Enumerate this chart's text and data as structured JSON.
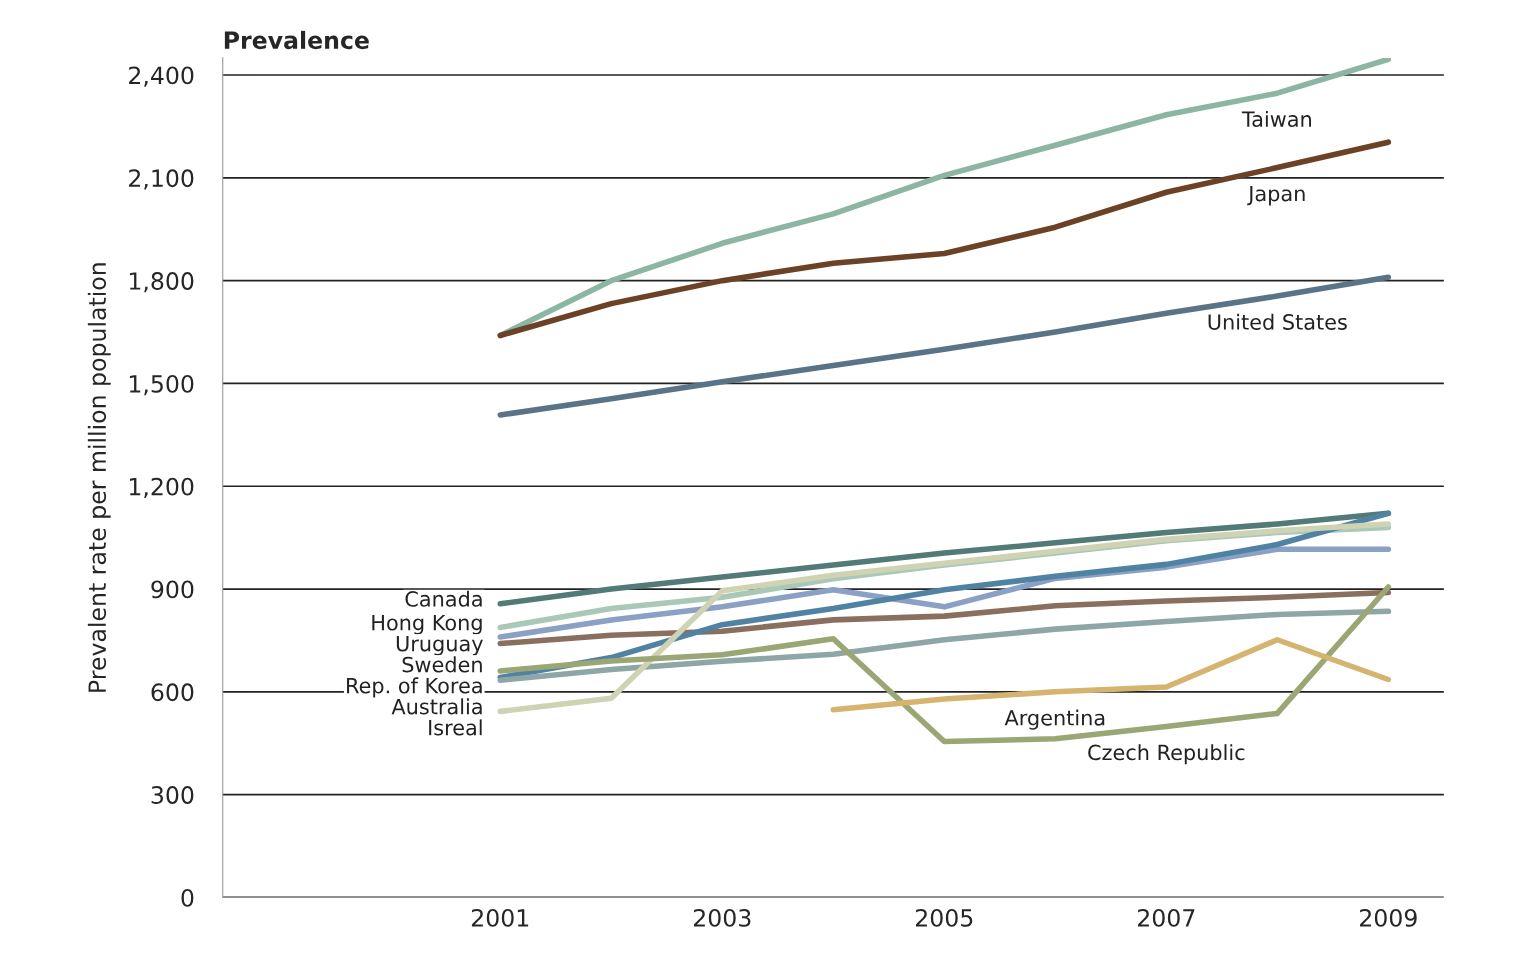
{
  "chart_data": {
    "type": "line",
    "title": "Prevalence",
    "ylabel": "Prevalent rate per million population",
    "x": [
      2001,
      2002,
      2003,
      2004,
      2005,
      2006,
      2007,
      2008,
      2009
    ],
    "series": [
      {
        "color": "#8db5a4",
        "values": [
          1640,
          1800,
          1909,
          1995,
          2107,
          2195,
          2284,
          2347,
          2446
        ]
      },
      {
        "color": "#6b4226",
        "values": [
          1640,
          1733,
          1800,
          1851,
          1879,
          1956,
          2058,
          2130,
          2204
        ]
      },
      {
        "color": "#5a7386",
        "values": [
          1408,
          1455,
          1505,
          1552,
          1600,
          1650,
          1705,
          1755,
          1810
        ]
      },
      {
        "color": "#527a76",
        "values": [
          857,
          900,
          935,
          970,
          1005,
          1035,
          1065,
          1090,
          1121
        ]
      },
      {
        "color": "#a9c8b8",
        "values": [
          788,
          843,
          876,
          930,
          970,
          1005,
          1041,
          1065,
          1080
        ]
      },
      {
        "color": "#8aa0c4",
        "values": [
          760,
          810,
          848,
          898,
          848,
          931,
          964,
          1016,
          1016
        ]
      },
      {
        "color": "#8a6e5e",
        "values": [
          741,
          765,
          777,
          810,
          821,
          851,
          865,
          876,
          890
        ]
      },
      {
        "color": "#4f82a3",
        "values": [
          642,
          700,
          796,
          843,
          898,
          937,
          972,
          1030,
          1121
        ]
      },
      {
        "color": "#8fa6a6",
        "values": [
          634,
          665,
          689,
          710,
          752,
          783,
          805,
          826,
          835
        ]
      },
      {
        "color": "#cfd3b4",
        "values": [
          543,
          581,
          895,
          940,
          975,
          1010,
          1045,
          1070,
          1090
        ]
      },
      {
        "color": "#9aa673",
        "values": [
          661,
          690,
          708,
          755,
          455,
          463,
          499,
          537,
          906
        ]
      },
      {
        "color": "#d5b46f",
        "values": [
          null,
          null,
          null,
          548,
          579,
          600,
          614,
          752,
          636
        ]
      }
    ],
    "annotations": [
      {
        "text": "Taiwan",
        "x": 2008,
        "y": 2347
      },
      {
        "text": "Japan",
        "x": 2008,
        "y": 2130
      },
      {
        "text": "United States",
        "x": 2008,
        "y": 1755
      },
      {
        "text": "Canada",
        "x": 2001,
        "y": 857
      },
      {
        "text": "Hong Kong",
        "x": 2001,
        "y": 788
      },
      {
        "text": "Uruguay",
        "x": 2001,
        "y": 760
      },
      {
        "text": "Sweden",
        "x": 2001,
        "y": 741
      },
      {
        "text": "Rep. of Korea",
        "x": 2001,
        "y": 642
      },
      {
        "text": "Australia",
        "x": 2001,
        "y": 634
      },
      {
        "text": "Isreal",
        "x": 2001,
        "y": 543
      },
      {
        "text": "Argentina",
        "x": 2006,
        "y": 600
      },
      {
        "text": "Czech Republic",
        "x": 2007,
        "y": 499
      }
    ],
    "xlim": [
      1998.5,
      2009.5
    ],
    "xticks": [
      2001,
      2003,
      2005,
      2007,
      2009
    ],
    "ylim": [
      0,
      2450
    ],
    "yticks": [
      {
        "value": 0,
        "label": "0"
      },
      {
        "value": 300,
        "label": "300"
      },
      {
        "value": 600,
        "label": "600"
      },
      {
        "value": 900,
        "label": "900"
      },
      {
        "value": 1200,
        "label": "1,200"
      },
      {
        "value": 1500,
        "label": "1,500"
      },
      {
        "value": 1800,
        "label": "1,800"
      },
      {
        "value": 2100,
        "label": "2,100"
      },
      {
        "value": 2400,
        "label": "2,400"
      }
    ],
    "grid": "y",
    "marker": "none",
    "line_style": "solid"
  }
}
